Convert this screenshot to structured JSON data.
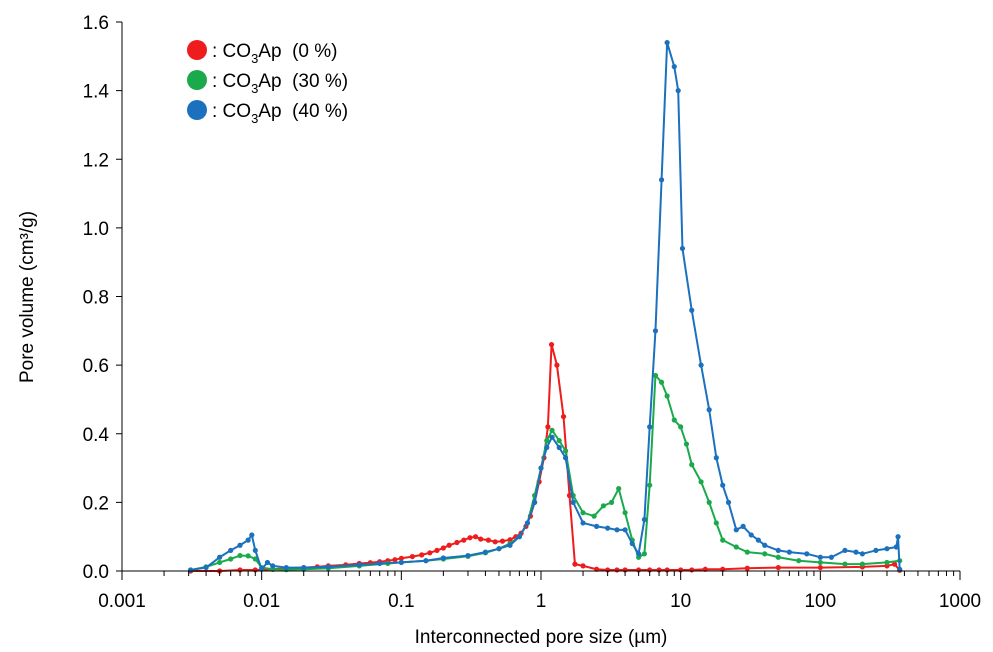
{
  "chart_data": {
    "type": "line",
    "title": "",
    "xlabel": "Interconnected pore size (µm)",
    "ylabel": "Pore volume (cm³/g)",
    "x_scale": "log",
    "xlim": [
      0.001,
      1000
    ],
    "ylim": [
      0,
      1.6
    ],
    "x_ticks": [
      {
        "value": 0.001,
        "label": "0.001"
      },
      {
        "value": 0.01,
        "label": "0.01"
      },
      {
        "value": 0.1,
        "label": "0.1"
      },
      {
        "value": 1,
        "label": "1"
      },
      {
        "value": 10,
        "label": "10"
      },
      {
        "value": 100,
        "label": "100"
      },
      {
        "value": 1000,
        "label": "1000"
      }
    ],
    "y_ticks": [
      {
        "value": 0,
        "label": "0.0"
      },
      {
        "value": 0.2,
        "label": "0.2"
      },
      {
        "value": 0.4,
        "label": "0.4"
      },
      {
        "value": 0.6,
        "label": "0.6"
      },
      {
        "value": 0.8,
        "label": "0.8"
      },
      {
        "value": 1.0,
        "label": "1.0"
      },
      {
        "value": 1.2,
        "label": "1.2"
      },
      {
        "value": 1.4,
        "label": "1.4"
      },
      {
        "value": 1.6,
        "label": "1.6"
      }
    ],
    "grid": false,
    "legend_position": "top-left",
    "legend_prefix": ": ",
    "series": [
      {
        "name": "CO3Ap (0 %)",
        "legend_parts": [
          "CO",
          "3",
          "Ap (0 %)"
        ],
        "color": "#ee1c1c",
        "x": [
          0.0031,
          0.005,
          0.007,
          0.009,
          0.012,
          0.015,
          0.02,
          0.025,
          0.03,
          0.04,
          0.05,
          0.06,
          0.07,
          0.08,
          0.09,
          0.1,
          0.12,
          0.14,
          0.16,
          0.18,
          0.2,
          0.22,
          0.25,
          0.28,
          0.31,
          0.34,
          0.37,
          0.42,
          0.47,
          0.53,
          0.6,
          0.66,
          0.72,
          0.78,
          0.84,
          0.9,
          0.97,
          1.05,
          1.12,
          1.19,
          1.3,
          1.45,
          1.6,
          1.75,
          2.0,
          2.5,
          3.0,
          3.5,
          4.0,
          5.0,
          6.0,
          7.0,
          8.0,
          10,
          12,
          15,
          20,
          30,
          50,
          100,
          200,
          300,
          340,
          370
        ],
        "y": [
          0.0,
          0.0,
          0.003,
          0.003,
          0.005,
          0.008,
          0.01,
          0.012,
          0.015,
          0.018,
          0.022,
          0.024,
          0.027,
          0.03,
          0.033,
          0.037,
          0.042,
          0.047,
          0.053,
          0.06,
          0.067,
          0.075,
          0.083,
          0.09,
          0.097,
          0.1,
          0.093,
          0.09,
          0.085,
          0.087,
          0.091,
          0.1,
          0.11,
          0.13,
          0.16,
          0.2,
          0.26,
          0.33,
          0.42,
          0.66,
          0.6,
          0.45,
          0.22,
          0.02,
          0.015,
          0.005,
          0.003,
          0.003,
          0.003,
          0.003,
          0.003,
          0.003,
          0.003,
          0.003,
          0.003,
          0.005,
          0.005,
          0.008,
          0.01,
          0.01,
          0.012,
          0.015,
          0.02,
          0.002
        ]
      },
      {
        "name": "CO3Ap (30 %)",
        "legend_parts": [
          "CO",
          "3",
          "Ap (30 %)"
        ],
        "color": "#1aaa4b",
        "x": [
          0.0031,
          0.004,
          0.005,
          0.006,
          0.007,
          0.008,
          0.009,
          0.01,
          0.012,
          0.015,
          0.02,
          0.03,
          0.05,
          0.08,
          0.1,
          0.15,
          0.2,
          0.3,
          0.4,
          0.5,
          0.6,
          0.7,
          0.8,
          0.9,
          1.0,
          1.1,
          1.2,
          1.35,
          1.5,
          1.7,
          2.0,
          2.4,
          2.8,
          3.2,
          3.6,
          4.0,
          4.5,
          5.0,
          5.5,
          6.0,
          6.6,
          7.3,
          8.0,
          9.0,
          10,
          11,
          12,
          14,
          16,
          18,
          20,
          25,
          30,
          40,
          50,
          70,
          100,
          150,
          200,
          300,
          370
        ],
        "y": [
          0.003,
          0.012,
          0.025,
          0.035,
          0.045,
          0.044,
          0.035,
          0.01,
          0.005,
          0.004,
          0.005,
          0.008,
          0.015,
          0.022,
          0.025,
          0.03,
          0.035,
          0.043,
          0.053,
          0.065,
          0.08,
          0.1,
          0.14,
          0.22,
          0.3,
          0.38,
          0.41,
          0.38,
          0.35,
          0.22,
          0.17,
          0.16,
          0.19,
          0.2,
          0.24,
          0.17,
          0.09,
          0.04,
          0.05,
          0.25,
          0.57,
          0.55,
          0.51,
          0.44,
          0.42,
          0.37,
          0.31,
          0.26,
          0.2,
          0.14,
          0.09,
          0.07,
          0.055,
          0.05,
          0.04,
          0.03,
          0.025,
          0.02,
          0.02,
          0.025,
          0.03
        ]
      },
      {
        "name": "CO3Ap (40 %)",
        "legend_parts": [
          "CO",
          "3",
          "Ap (40 %)"
        ],
        "color": "#1b71be",
        "x": [
          0.0031,
          0.004,
          0.005,
          0.006,
          0.007,
          0.008,
          0.0085,
          0.009,
          0.01,
          0.011,
          0.012,
          0.015,
          0.02,
          0.03,
          0.05,
          0.07,
          0.1,
          0.15,
          0.2,
          0.3,
          0.4,
          0.5,
          0.6,
          0.7,
          0.8,
          0.9,
          1.0,
          1.1,
          1.2,
          1.35,
          1.5,
          1.7,
          2.0,
          2.5,
          3.0,
          3.5,
          4.0,
          4.5,
          5.0,
          5.5,
          6.0,
          6.6,
          7.3,
          8.0,
          9.0,
          9.6,
          10.3,
          12,
          14,
          16,
          18,
          20,
          22,
          25,
          28,
          32,
          36,
          40,
          50,
          60,
          80,
          100,
          120,
          150,
          180,
          200,
          250,
          300,
          350,
          360,
          370
        ],
        "y": [
          0.003,
          0.01,
          0.04,
          0.06,
          0.075,
          0.09,
          0.105,
          0.06,
          0.005,
          0.025,
          0.015,
          0.01,
          0.01,
          0.012,
          0.018,
          0.022,
          0.025,
          0.03,
          0.038,
          0.045,
          0.055,
          0.065,
          0.075,
          0.1,
          0.14,
          0.2,
          0.3,
          0.36,
          0.39,
          0.36,
          0.33,
          0.2,
          0.14,
          0.13,
          0.125,
          0.12,
          0.12,
          0.08,
          0.05,
          0.15,
          0.42,
          0.7,
          1.14,
          1.54,
          1.47,
          1.4,
          0.94,
          0.76,
          0.6,
          0.47,
          0.33,
          0.25,
          0.2,
          0.12,
          0.13,
          0.105,
          0.09,
          0.075,
          0.06,
          0.055,
          0.05,
          0.04,
          0.04,
          0.06,
          0.055,
          0.05,
          0.06,
          0.065,
          0.07,
          0.1,
          0.005
        ]
      }
    ]
  }
}
